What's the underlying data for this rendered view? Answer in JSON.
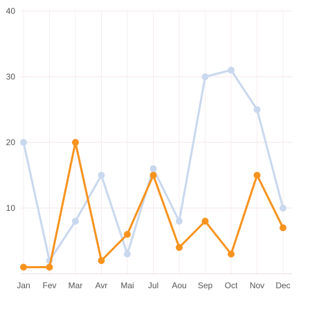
{
  "chart_data": {
    "type": "line",
    "categories": [
      "Jan",
      "Fev",
      "Mar",
      "Avr",
      "Mai",
      "Jul",
      "Aou",
      "Sep",
      "Oct",
      "Nov",
      "Dec"
    ],
    "y_ticks": [
      "10",
      "20",
      "30",
      "40"
    ],
    "ylim": [
      0,
      40
    ],
    "grid": true,
    "series": [
      {
        "color": "#c9d8ee",
        "values": [
          20,
          2,
          8,
          15,
          3,
          16,
          8,
          30,
          31,
          25,
          10
        ]
      },
      {
        "color": "#f7931e",
        "values": [
          1,
          1,
          20,
          2,
          6,
          15,
          4,
          8,
          3,
          15,
          7
        ]
      }
    ]
  }
}
